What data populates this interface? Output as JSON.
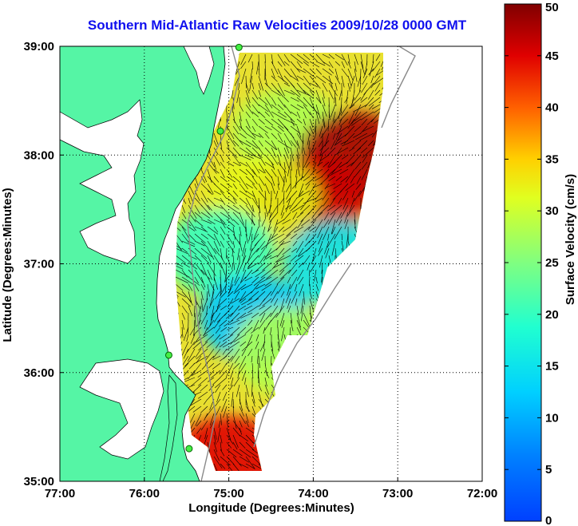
{
  "title": "Southern Mid-Atlantic Raw Velocities 2009/10/28 0000 GMT",
  "x_axis": {
    "label": "Longitude (Degrees:Minutes)",
    "ticks": [
      "77:00",
      "76:00",
      "75:00",
      "74:00",
      "73:00",
      "72:00"
    ]
  },
  "y_axis": {
    "label": "Latitude (Degrees:Minutes)",
    "ticks": [
      "39:00",
      "38:00",
      "37:00",
      "36:00",
      "35:00"
    ]
  },
  "colorbar": {
    "label": "Surface Velocity (cm/s)",
    "ticks": [
      "50",
      "45",
      "40",
      "35",
      "30",
      "25",
      "20",
      "15",
      "10",
      "5",
      "0"
    ],
    "range": [
      0,
      50
    ],
    "colormap": "jet"
  },
  "chart_data": {
    "type": "heatmap",
    "title": "Southern Mid-Atlantic Raw Velocities 2009/10/28 0000 GMT",
    "xlabel": "Longitude (Degrees:Minutes)",
    "ylabel": "Latitude (Degrees:Minutes)",
    "xlim": [
      -77,
      -72
    ],
    "ylim": [
      35,
      39
    ],
    "grid": true,
    "colorbar_label": "Surface Velocity (cm/s)",
    "clim": [
      0,
      50
    ],
    "land_color": "#55f5a5",
    "grid_color": "#000000",
    "coastline_color": "#000000",
    "bathymetry_color": "#888888",
    "stations": [
      {
        "lon": -74.88,
        "lat": 38.99
      },
      {
        "lon": -75.1,
        "lat": 38.22
      },
      {
        "lon": -75.71,
        "lat": 36.16
      },
      {
        "lon": -75.47,
        "lat": 35.3
      }
    ],
    "velocity_regions": [
      {
        "lon": -74.3,
        "lat": 38.2,
        "speed": 28
      },
      {
        "lon": -73.5,
        "lat": 38.0,
        "speed": 48
      },
      {
        "lon": -74.0,
        "lat": 37.6,
        "speed": 46
      },
      {
        "lon": -74.6,
        "lat": 37.6,
        "speed": 32
      },
      {
        "lon": -75.1,
        "lat": 37.1,
        "speed": 20
      },
      {
        "lon": -74.7,
        "lat": 36.5,
        "speed": 12
      },
      {
        "lon": -74.3,
        "lat": 36.2,
        "speed": 28
      },
      {
        "lon": -75.0,
        "lat": 35.2,
        "speed": 45
      },
      {
        "lon": -73.7,
        "lat": 37.0,
        "speed": 15
      }
    ]
  }
}
